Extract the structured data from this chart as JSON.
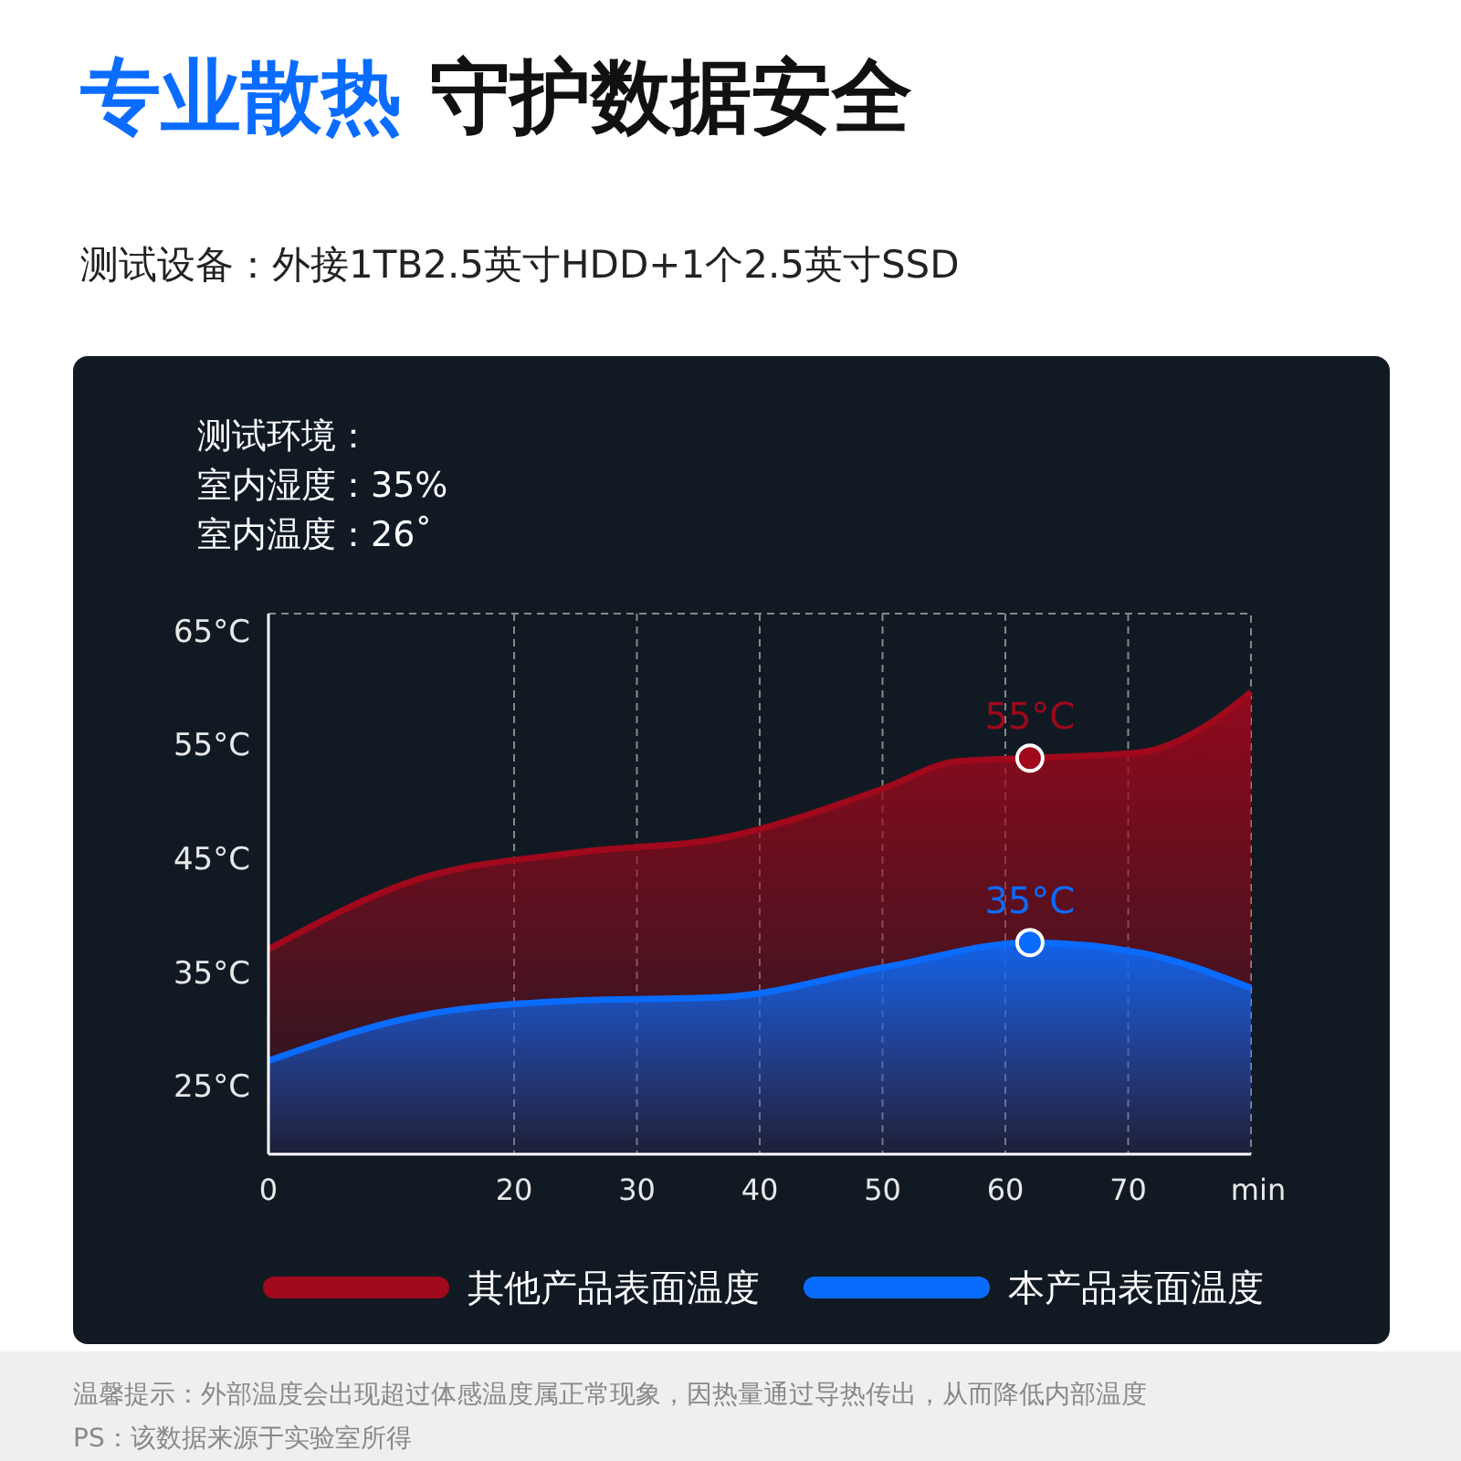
{
  "chart_data": {
    "type": "area",
    "title": "专业散热 守护数据安全",
    "subtitle": "测试设备：外接1TB2.5英寸HDD+1个2.5英寸SSD",
    "xlabel": "min",
    "xlim": [
      0,
      80
    ],
    "xticks": [
      0,
      20,
      30,
      40,
      50,
      60,
      70
    ],
    "ylim": [
      19,
      66.5
    ],
    "yticks": [
      {
        "value": 25,
        "label": "25°C"
      },
      {
        "value": 35,
        "label": "35°C"
      },
      {
        "value": 45,
        "label": "45°C"
      },
      {
        "value": 55,
        "label": "55°C"
      },
      {
        "value": 65,
        "label": "65°C"
      }
    ],
    "grid": "x",
    "legend": "bottom",
    "line_style": "solid",
    "series": [
      {
        "name": "其他产品表面温度",
        "color": "#a0081c",
        "x": [
          0,
          12,
          25,
          37,
          50,
          56,
          62,
          71,
          76,
          80
        ],
        "values": [
          37.0,
          43.1,
          45.5,
          46.8,
          51.1,
          53.5,
          53.8,
          54.3,
          56.4,
          59.6
        ]
      },
      {
        "name": "本产品表面温度",
        "color": "#0a6cff",
        "x": [
          0,
          12,
          25,
          37,
          50,
          62,
          71,
          80
        ],
        "values": [
          27.2,
          31.1,
          32.5,
          32.8,
          35.4,
          37.6,
          36.7,
          33.6
        ]
      },
      {
        "type": "scatter",
        "color": "#a0081c",
        "x": [
          62
        ],
        "values": [
          53.8
        ],
        "marker": "circle"
      },
      {
        "type": "scatter",
        "color": "#0a6cff",
        "x": [
          62
        ],
        "values": [
          37.6
        ],
        "marker": "circle"
      }
    ],
    "annotations": [
      "测试环境：",
      "室内湿度：35%",
      "室内温度：26˚",
      {
        "text": "55°C",
        "x": 62,
        "y": 53.8
      },
      {
        "text": "35°C",
        "x": 62,
        "y": 37.6
      },
      "温馨提示：外部温度会出现超过体感温度属正常现象，因热量通过导热传出，从而降低内部温度",
      "PS：该数据来源于实验室所得"
    ]
  }
}
